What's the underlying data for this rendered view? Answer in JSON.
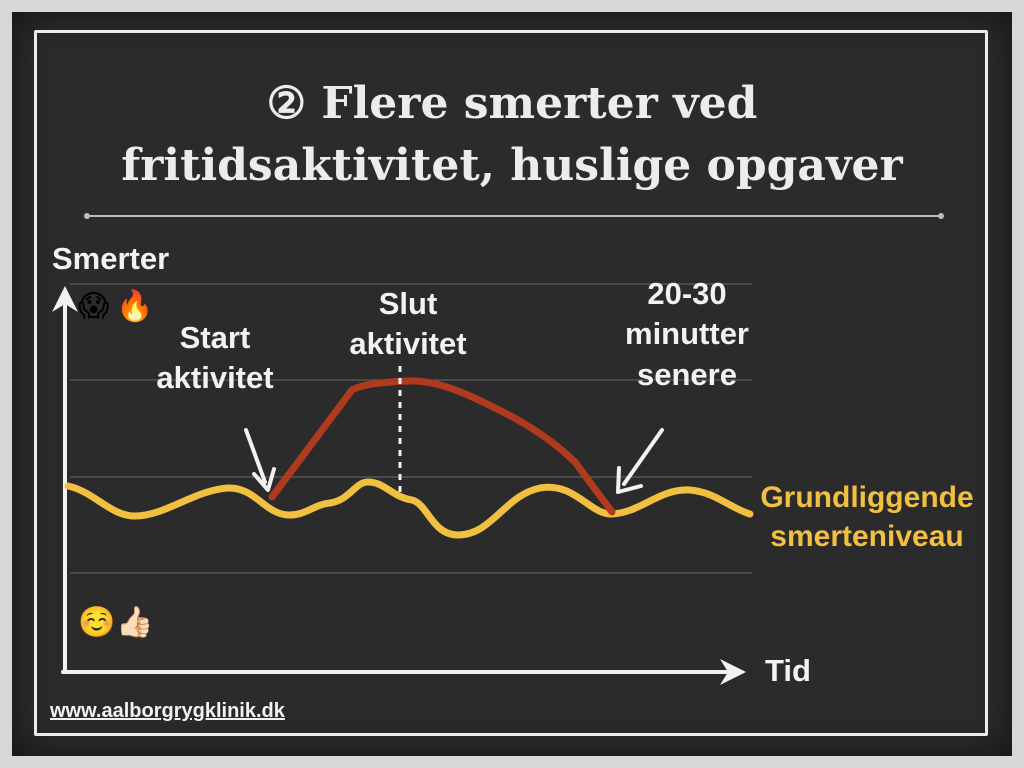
{
  "title": {
    "line1": "② Flere smerter ved",
    "line2": "fritidsaktivitet, huslige opgaver"
  },
  "axes": {
    "y_label": "Smerter",
    "x_label": "Tid"
  },
  "annotations": {
    "start": [
      "Start",
      "aktivitet"
    ],
    "end": [
      "Slut",
      "aktivitet"
    ],
    "later": [
      "20-30",
      "minutter",
      "senere"
    ],
    "baseline": [
      "Grundliggende",
      "smerteniveau"
    ]
  },
  "emoji": {
    "high": [
      "😱",
      "🔥"
    ],
    "low": [
      "☺️",
      "👍🏻"
    ]
  },
  "footer": {
    "url": "www.aalborgrygklinik.dk"
  },
  "colors": {
    "background": "#2b2b2b",
    "baseline_curve": "#f2c040",
    "activity_curve": "#b03a1e",
    "text": "#f2f2f2"
  }
}
